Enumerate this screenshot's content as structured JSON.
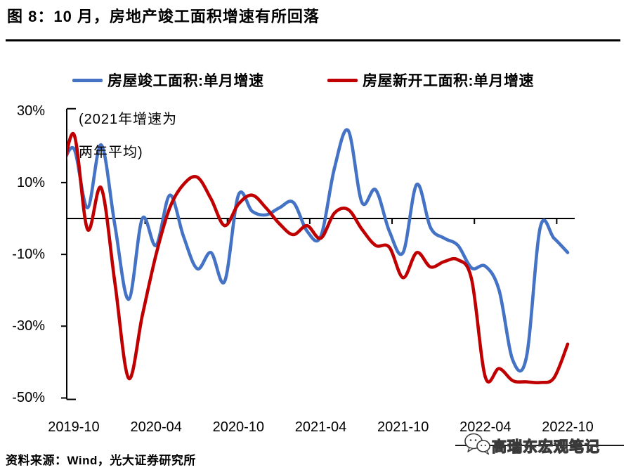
{
  "header": {
    "title": "图 8：10 月，房地产竣工面积增速有所回落"
  },
  "legend": [
    {
      "label": "房屋竣工面积:单月增速",
      "color": "#4472C4"
    },
    {
      "label": "房屋新开工面积:单月增速",
      "color": "#C00000"
    }
  ],
  "annotation": {
    "line1": "(2021年增速为",
    "line2": "两年平均)"
  },
  "footer": {
    "source": "资料来源：Wind，光大证券研究所",
    "watermark": "高瑞东宏观笔记",
    "watermark_icon": "wechat-bubbles-icon"
  },
  "colors": {
    "blue": "#4472C4",
    "red": "#C00000",
    "axis": "#000000"
  },
  "chart_data": {
    "type": "line",
    "title": "图 8：10 月，房地产竣工面积增速有所回落",
    "annotation": "(2021年增速为两年平均)",
    "xlabel": "",
    "ylabel": "",
    "ylim": [
      -50,
      30
    ],
    "grid": false,
    "legend_position": "top",
    "x": [
      "2019-09",
      "2019-10",
      "2019-11",
      "2019-12",
      "2020-01",
      "2020-02",
      "2020-03",
      "2020-04",
      "2020-05",
      "2020-06",
      "2020-07",
      "2020-08",
      "2020-09",
      "2020-10",
      "2020-11",
      "2020-12",
      "2021-01",
      "2021-02",
      "2021-03",
      "2021-04",
      "2021-05",
      "2021-06",
      "2021-07",
      "2021-08",
      "2021-09",
      "2021-10",
      "2021-11",
      "2021-12",
      "2022-01",
      "2022-02",
      "2022-03",
      "2022-04",
      "2022-05",
      "2022-06",
      "2022-07",
      "2022-08",
      "2022-09",
      "2022-10"
    ],
    "series": [
      {
        "name": "房屋竣工面积:单月增速",
        "color": "#4472C4",
        "values": [
          13,
          19.5,
          3,
          20.5,
          -2,
          -22.5,
          0,
          -7.5,
          6.5,
          -5,
          -14,
          -9.5,
          -17.5,
          6.5,
          2,
          1,
          3,
          4.5,
          -3.5,
          -5,
          14,
          24.5,
          4.5,
          8,
          -3.5,
          -9.5,
          9.5,
          -2.5,
          -5.5,
          -7.5,
          -13.8,
          -13.3,
          -20,
          -39.5,
          -38.5,
          -2.5,
          -5.5,
          -9.5
        ]
      },
      {
        "name": "房屋新开工面积:单月增速",
        "color": "#C00000",
        "values": [
          8,
          23.5,
          -3,
          8.5,
          -18,
          -44.5,
          -27,
          -10,
          3,
          9.5,
          11.5,
          5.5,
          -2,
          4,
          6.5,
          3,
          -1.5,
          -4.5,
          -2,
          -5.5,
          1.5,
          2.5,
          -3,
          -7.5,
          -8,
          -16.5,
          -9.5,
          -13.5,
          -12,
          -11.5,
          -17,
          -44.2,
          -41.8,
          -45.2,
          -45.5,
          -45.7,
          -44.4,
          -35
        ]
      }
    ],
    "y_tick_labels": [
      "30%",
      "10%",
      "-10%",
      "-30%",
      "-50%"
    ],
    "y_tick_values": [
      30,
      10,
      -10,
      -30,
      -50
    ],
    "x_tick_labels": [
      "2019-10",
      "2020-04",
      "2020-10",
      "2021-04",
      "2021-10",
      "2022-04",
      "2022-10"
    ]
  }
}
